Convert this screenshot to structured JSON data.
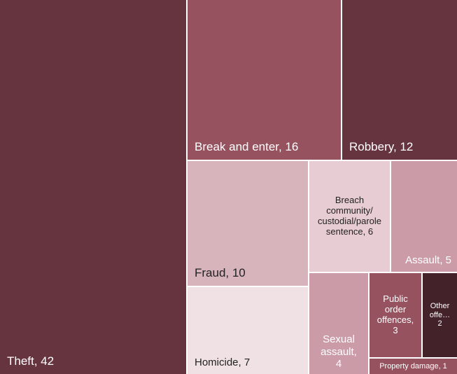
{
  "chart_data": {
    "type": "treemap",
    "title": "",
    "items": [
      {
        "name": "Theft",
        "value": 42,
        "label": "Theft, 42",
        "color": "#66343f",
        "text_color": "#ffffff"
      },
      {
        "name": "Break and enter",
        "value": 16,
        "label": "Break and enter, 16",
        "color": "#97525f",
        "text_color": "#ffffff"
      },
      {
        "name": "Robbery",
        "value": 12,
        "label": "Robbery, 12",
        "color": "#66343f",
        "text_color": "#ffffff"
      },
      {
        "name": "Fraud",
        "value": 10,
        "label": "Fraud, 10",
        "color": "#d7b3bc",
        "text_color": "#222222"
      },
      {
        "name": "Breach community/custodial/parole sentence",
        "value": 6,
        "label": "Breach community/ custodial/parole sentence, 6",
        "color": "#e7ccd3",
        "text_color": "#222222"
      },
      {
        "name": "Assault",
        "value": 5,
        "label": "Assault, 5",
        "color": "#cb9ca7",
        "text_color": "#ffffff"
      },
      {
        "name": "Homicide",
        "value": 7,
        "label": "Homicide, 7",
        "color": "#f0e1e5",
        "text_color": "#222222"
      },
      {
        "name": "Sexual assault",
        "value": 4,
        "label": "Sexual assault, 4",
        "color": "#cb9ca7",
        "text_color": "#ffffff"
      },
      {
        "name": "Public order offences",
        "value": 3,
        "label": "Public order offences, 3",
        "color": "#97525f",
        "text_color": "#ffffff"
      },
      {
        "name": "Other offe…",
        "value": 2,
        "label": "Other offe… 2",
        "color": "#432229",
        "text_color": "#ffffff"
      },
      {
        "name": "Property damage",
        "value": 1,
        "label": "Property damage, 1",
        "color": "#97525f",
        "text_color": "#ffffff"
      }
    ]
  }
}
